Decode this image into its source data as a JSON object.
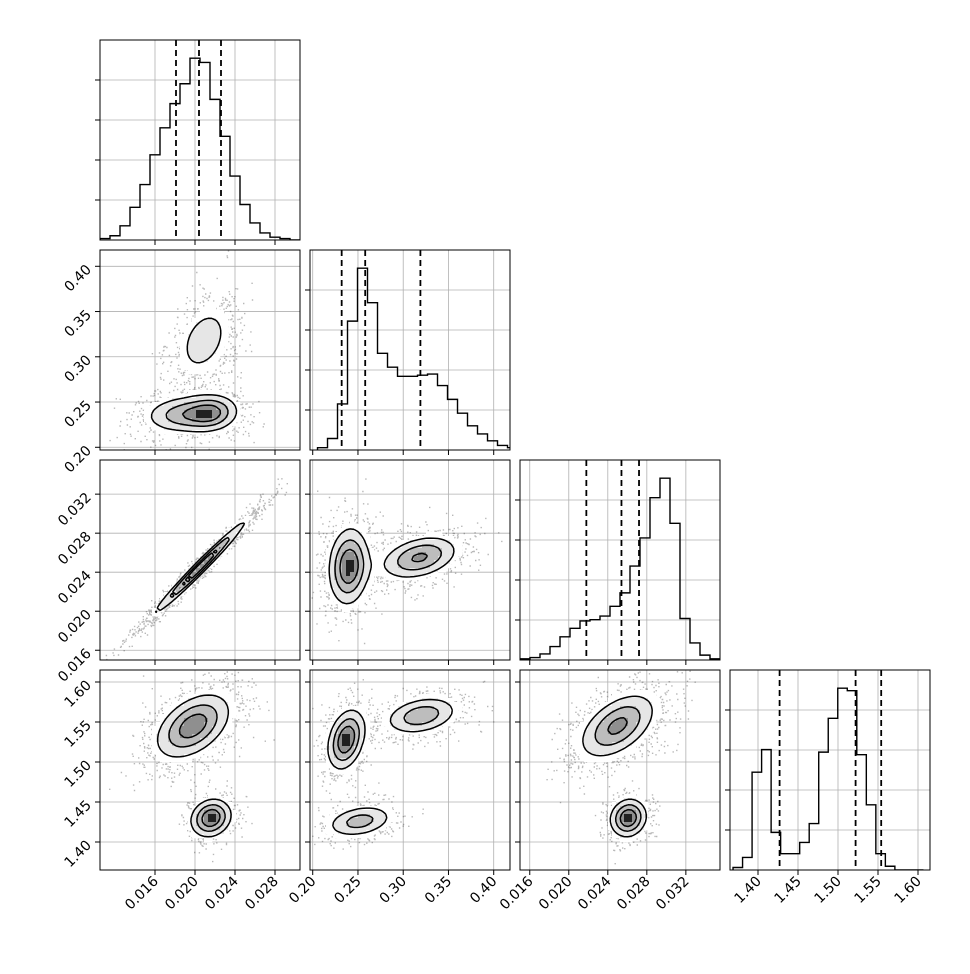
{
  "chart_data": {
    "type": "corner",
    "grid": true,
    "colors": {
      "hist": "#000000",
      "quantile": "#000000",
      "points": "#333333",
      "grid": "#b0b0b0"
    },
    "parameters": [
      {
        "range": [
          0.0105,
          0.0305
        ],
        "ticks": [
          0.016,
          0.02,
          0.024,
          0.028
        ],
        "tick_labels": [
          "0.016",
          "0.020",
          "0.024",
          "0.028"
        ],
        "quantiles": [
          0.0181,
          0.0204,
          0.0226
        ]
      },
      {
        "range": [
          0.197,
          0.418
        ],
        "ticks": [
          0.2,
          0.25,
          0.3,
          0.35,
          0.4
        ],
        "tick_labels": [
          "0.20",
          "0.25",
          "0.30",
          "0.35",
          "0.40"
        ],
        "quantiles": [
          0.232,
          0.258,
          0.319
        ]
      },
      {
        "range": [
          0.015,
          0.0355
        ],
        "ticks": [
          0.016,
          0.02,
          0.024,
          0.028,
          0.032
        ],
        "tick_labels": [
          "0.016",
          "0.020",
          "0.024",
          "0.028",
          "0.032"
        ],
        "quantiles": [
          0.0218,
          0.0254,
          0.0272
        ]
      },
      {
        "range": [
          1.365,
          1.615
        ],
        "ticks": [
          1.4,
          1.45,
          1.5,
          1.55,
          1.6
        ],
        "tick_labels": [
          "1.40",
          "1.45",
          "1.50",
          "1.55",
          "1.60"
        ],
        "quantiles": [
          1.427,
          1.522,
          1.554
        ]
      }
    ],
    "histograms": [
      {
        "parameter": 0,
        "bin_start": 0.0105,
        "bin_width": 0.001,
        "counts": [
          1,
          3,
          10,
          23,
          39,
          60,
          79,
          96,
          110,
          128,
          125,
          99,
          73,
          45,
          25,
          12,
          5,
          2,
          1,
          0
        ]
      },
      {
        "parameter": 1,
        "bin_start": 0.2053,
        "bin_width": 0.01105,
        "counts": [
          2,
          10,
          40,
          112,
          158,
          128,
          84,
          72,
          64,
          64,
          65,
          66,
          56,
          44,
          32,
          21,
          14,
          8,
          4,
          2
        ]
      },
      {
        "parameter": 2,
        "bin_start": 0.015,
        "bin_width": 0.001025,
        "counts": [
          1,
          2,
          5,
          11,
          19,
          26,
          32,
          33,
          36,
          44,
          55,
          77,
          100,
          133,
          149,
          112,
          34,
          14,
          4,
          1
        ]
      },
      {
        "parameter": 3,
        "bin_start": 1.3688,
        "bin_width": 0.0119,
        "counts": [
          2,
          10,
          78,
          96,
          30,
          13,
          13,
          22,
          37,
          94,
          121,
          145,
          143,
          92,
          52,
          13,
          3,
          0,
          0,
          0
        ]
      }
    ],
    "pairs": [
      {
        "x": 0,
        "y": 1,
        "modes": [
          {
            "mx": 0.0186,
            "my": 0.236,
            "sx": 0.0022,
            "sy": 0.012,
            "rho": 0.1,
            "w": 0.35
          },
          {
            "mx": 0.0217,
            "my": 0.238,
            "sx": 0.0016,
            "sy": 0.012,
            "rho": 0.1,
            "w": 0.3
          },
          {
            "mx": 0.0209,
            "my": 0.318,
            "sx": 0.0017,
            "sy": 0.025,
            "rho": 0.35,
            "w": 0.35
          }
        ]
      },
      {
        "x": 0,
        "y": 2,
        "modes": [
          {
            "mx": 0.0205,
            "my": 0.0245,
            "sx": 0.0027,
            "sy": 0.0028,
            "rho": 0.985,
            "w": 1.0
          }
        ]
      },
      {
        "x": 0,
        "y": 3,
        "modes": [
          {
            "mx": 0.0198,
            "my": 1.545,
            "sx": 0.0022,
            "sy": 0.024,
            "rho": 0.45,
            "w": 0.72
          },
          {
            "mx": 0.0216,
            "my": 1.43,
            "sx": 0.0012,
            "sy": 0.014,
            "rho": 0.15,
            "w": 0.28
          }
        ]
      },
      {
        "x": 1,
        "y": 2,
        "modes": [
          {
            "mx": 0.24,
            "my": 0.0246,
            "sx": 0.013,
            "sy": 0.0023,
            "rho": 0.1,
            "w": 0.55
          },
          {
            "mx": 0.318,
            "my": 0.0255,
            "sx": 0.025,
            "sy": 0.0013,
            "rho": 0.35,
            "w": 0.45
          }
        ]
      },
      {
        "x": 1,
        "y": 3,
        "modes": [
          {
            "mx": 0.237,
            "my": 1.528,
            "sx": 0.012,
            "sy": 0.022,
            "rho": 0.3,
            "w": 0.4
          },
          {
            "mx": 0.32,
            "my": 1.558,
            "sx": 0.024,
            "sy": 0.014,
            "rho": 0.3,
            "w": 0.35
          },
          {
            "mx": 0.252,
            "my": 1.426,
            "sx": 0.022,
            "sy": 0.012,
            "rho": 0.3,
            "w": 0.25
          }
        ]
      },
      {
        "x": 2,
        "y": 3,
        "modes": [
          {
            "mx": 0.025,
            "my": 1.545,
            "sx": 0.0023,
            "sy": 0.024,
            "rho": 0.5,
            "w": 0.72
          },
          {
            "mx": 0.0261,
            "my": 1.43,
            "sx": 0.0011,
            "sy": 0.014,
            "rho": 0.1,
            "w": 0.28
          }
        ]
      }
    ],
    "contour_levels": [
      0.25,
      0.5,
      0.75
    ]
  }
}
